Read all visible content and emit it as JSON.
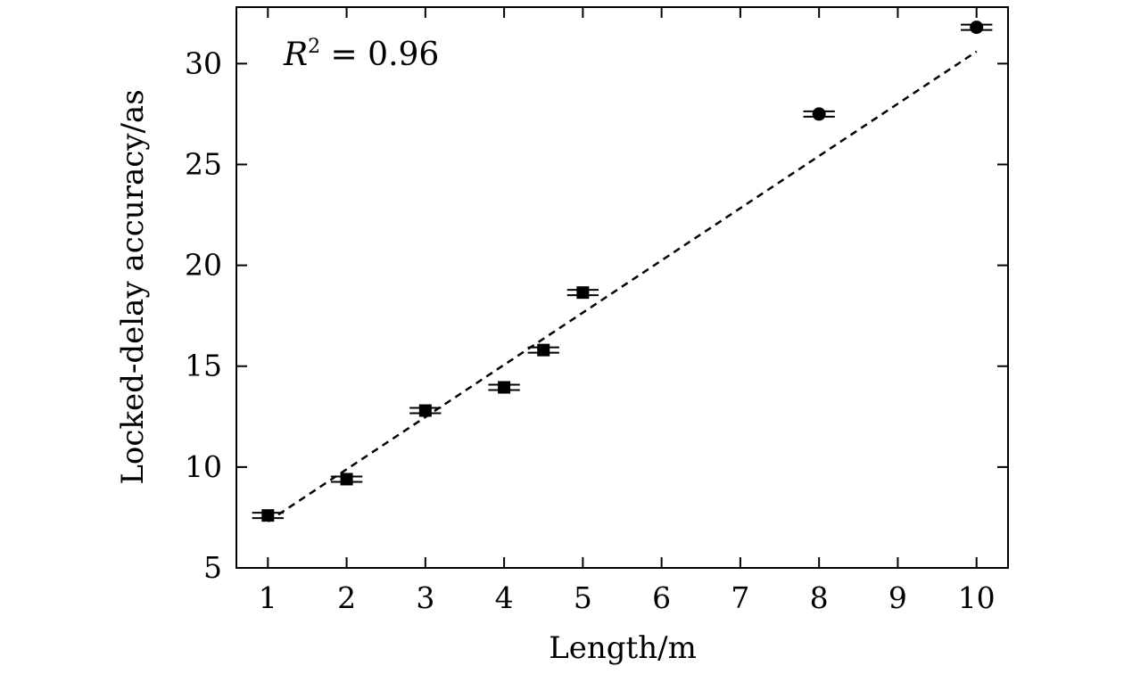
{
  "chart_data": {
    "type": "scatter",
    "title": "",
    "xlabel": "Length/m",
    "ylabel": "Locked-delay accuracy/as",
    "x_ticks": [
      "1",
      "2",
      "3",
      "4",
      "5",
      "6",
      "7",
      "8",
      "9",
      "10"
    ],
    "y_ticks": [
      "5",
      "10",
      "15",
      "20",
      "25",
      "30"
    ],
    "xlim": [
      0.6,
      10.4
    ],
    "ylim": [
      5,
      32.8
    ],
    "grid": false,
    "annotation": {
      "italic": "R",
      "superscript": "2",
      "rest": " = 0.96"
    },
    "series": [
      {
        "marker": "square",
        "x": [
          1,
          2,
          3,
          4,
          4.5,
          5
        ],
        "y": [
          7.6,
          9.4,
          12.8,
          13.95,
          15.8,
          18.65
        ],
        "error_x": [
          0.2,
          0.2,
          0.2,
          0.2,
          0.2,
          0.2
        ]
      },
      {
        "marker": "circle",
        "x": [
          8,
          10
        ],
        "y": [
          27.5,
          31.8
        ],
        "error_x": [
          0.2,
          0.2
        ]
      }
    ],
    "fit_line": {
      "style": "dashed",
      "x": [
        1,
        10
      ],
      "y": [
        7.3,
        30.6
      ]
    },
    "colors": {
      "markers": "#000000",
      "axes": "#000000",
      "background": "#ffffff"
    }
  }
}
